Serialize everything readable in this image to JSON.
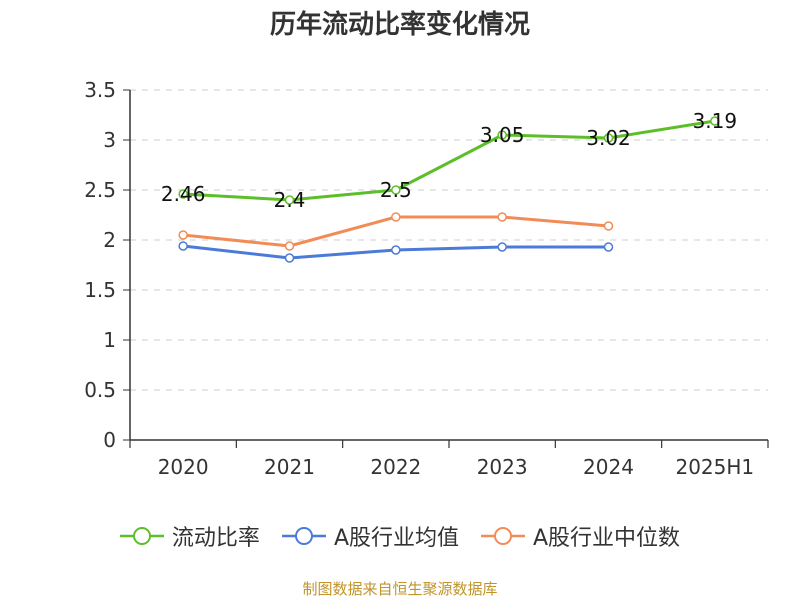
{
  "title": "历年流动比率变化情况",
  "source_text": "制图数据来自恒生聚源数据库",
  "colors": {
    "series": [
      "#5cbf2a",
      "#4b7bd8",
      "#f28c57"
    ],
    "grid": "#cccccc",
    "axis": "#333333",
    "text": "#333333",
    "source": "#c0942a"
  },
  "chart_data": {
    "type": "line",
    "title": "历年流动比率变化情况",
    "categories": [
      "2020",
      "2021",
      "2022",
      "2023",
      "2024",
      "2025H1"
    ],
    "y_ticks": [
      "0",
      "0.5",
      "1",
      "1.5",
      "2",
      "2.5",
      "3",
      "3.5"
    ],
    "ylim": [
      0,
      3.5
    ],
    "grid": true,
    "legend_position": "bottom",
    "series": [
      {
        "name": "流动比率",
        "values": [
          2.46,
          2.4,
          2.5,
          3.05,
          3.02,
          3.19
        ],
        "data_labels": [
          "2.46",
          "2.4",
          "2.5",
          "3.05",
          "3.02",
          "3.19"
        ]
      },
      {
        "name": "A股行业均值",
        "values": [
          1.94,
          1.82,
          1.9,
          1.93,
          1.93,
          null
        ]
      },
      {
        "name": "A股行业中位数",
        "values": [
          2.05,
          1.94,
          2.23,
          2.23,
          2.14,
          null
        ]
      }
    ]
  }
}
